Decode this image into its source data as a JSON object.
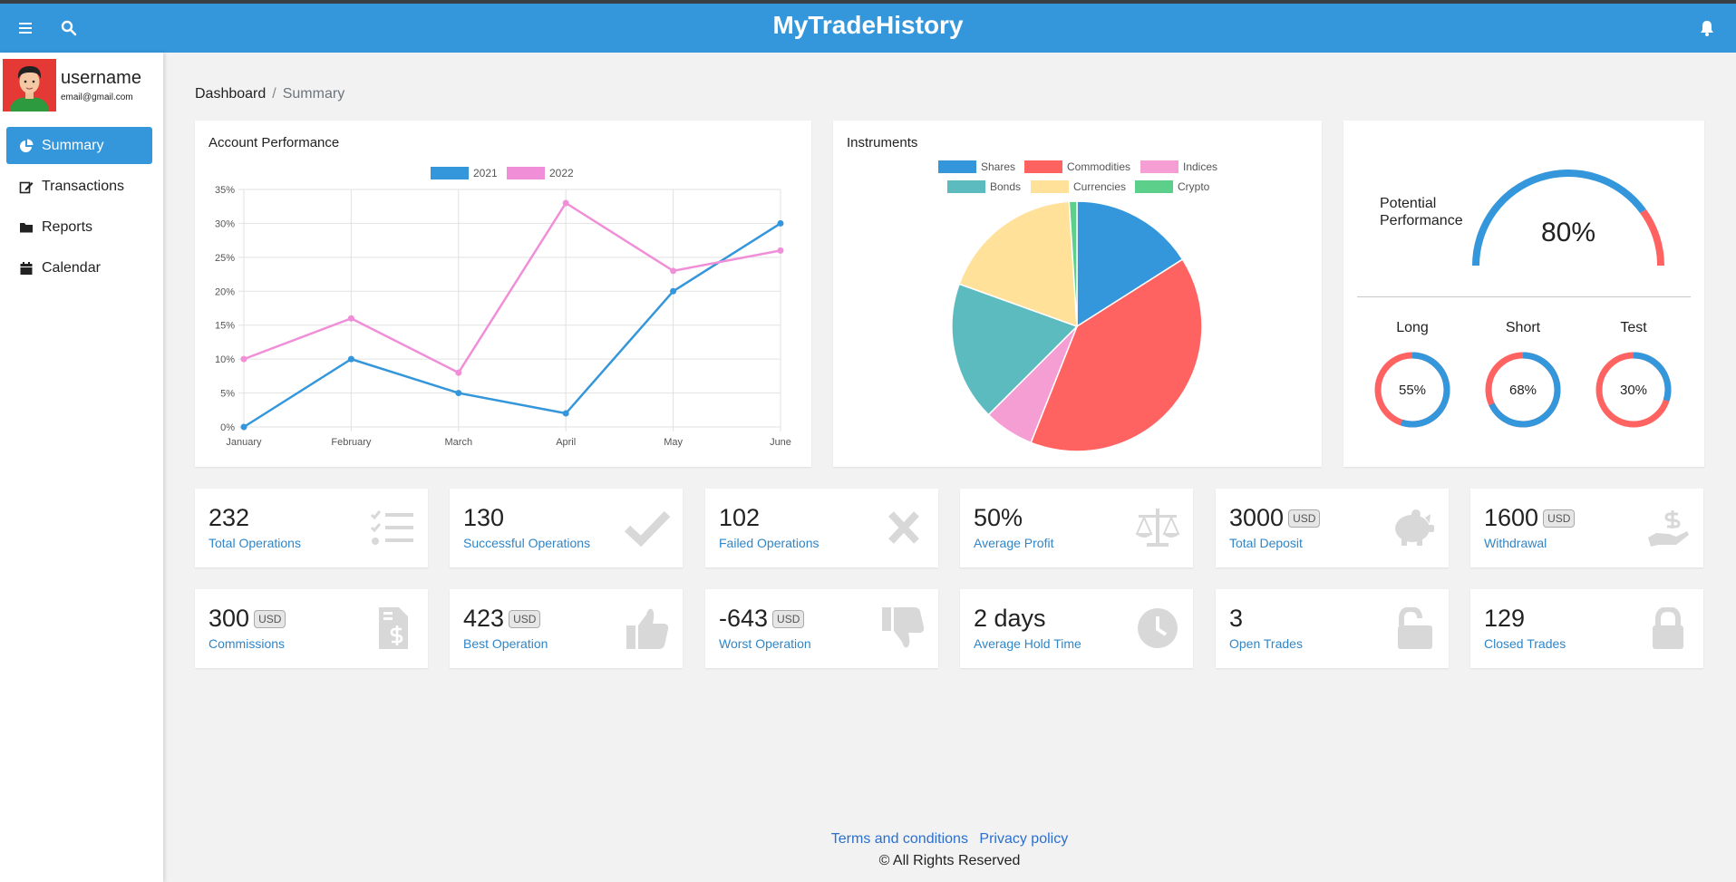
{
  "app": {
    "title": "MyTradeHistory"
  },
  "user": {
    "name": "username",
    "email": "email@gmail.com"
  },
  "nav": {
    "items": [
      {
        "label": "Summary",
        "icon": "pie-chart-icon",
        "active": true
      },
      {
        "label": "Transactions",
        "icon": "edit-icon"
      },
      {
        "label": "Reports",
        "icon": "folder-icon"
      },
      {
        "label": "Calendar",
        "icon": "calendar-icon"
      }
    ]
  },
  "breadcrumb": {
    "root": "Dashboard",
    "separator": "/",
    "current": "Summary"
  },
  "performance": {
    "title": "Account Performance"
  },
  "instruments": {
    "title": "Instruments"
  },
  "potential": {
    "title_line1": "Potential",
    "title_line2": "Performance",
    "value_label": "80%"
  },
  "mini_gauges": [
    {
      "label": "Long",
      "value_label": "55%"
    },
    {
      "label": "Short",
      "value_label": "68%"
    },
    {
      "label": "Test",
      "value_label": "30%"
    }
  ],
  "chart_data": [
    {
      "type": "line",
      "title": "Account Performance",
      "categories": [
        "January",
        "February",
        "March",
        "April",
        "May",
        "June"
      ],
      "series": [
        {
          "name": "2021",
          "color": "#3496db",
          "values": [
            0,
            10,
            5,
            2,
            20,
            30
          ]
        },
        {
          "name": "2022",
          "color": "#f08fd8",
          "values": [
            10,
            16,
            8,
            33,
            23,
            26
          ]
        }
      ],
      "yticks": [
        "0%",
        "5%",
        "10%",
        "15%",
        "20%",
        "25%",
        "30%",
        "35%"
      ],
      "ylim": [
        0,
        35
      ],
      "grid": true,
      "legend": "top-center"
    },
    {
      "type": "pie",
      "title": "Instruments",
      "legend": "top-center",
      "slices": [
        {
          "name": "Shares",
          "value": 16,
          "color": "#3496db"
        },
        {
          "name": "Commodities",
          "value": 40,
          "color": "#ff6361"
        },
        {
          "name": "Indices",
          "value": 6.5,
          "color": "#f59ed4"
        },
        {
          "name": "Bonds",
          "value": 18,
          "color": "#5bbbbf"
        },
        {
          "name": "Currencies",
          "value": 18.5,
          "color": "#ffe19a"
        },
        {
          "name": "Crypto",
          "value": 1,
          "color": "#5ccf8b"
        }
      ]
    },
    {
      "type": "gauge",
      "title": "Potential Performance",
      "value": 80,
      "colors": {
        "fill": "#3496db",
        "rest": "#ff6361"
      }
    },
    {
      "type": "doughnut",
      "items": [
        {
          "label": "Long",
          "value": 55
        },
        {
          "label": "Short",
          "value": 68
        },
        {
          "label": "Test",
          "value": 30
        }
      ],
      "colors": {
        "fill": "#3496db",
        "rest": "#ff6361"
      }
    }
  ],
  "stats": [
    {
      "value": "232",
      "unit": "",
      "label": "Total Operations",
      "icon": "checklist-icon"
    },
    {
      "value": "130",
      "unit": "",
      "label": "Successful Operations",
      "icon": "check-icon"
    },
    {
      "value": "102",
      "unit": "",
      "label": "Failed Operations",
      "icon": "x-icon"
    },
    {
      "value": "50%",
      "unit": "",
      "label": "Average Profit",
      "icon": "balance-scale-icon"
    },
    {
      "value": "3000",
      "unit": "USD",
      "label": "Total Deposit",
      "icon": "piggy-bank-icon"
    },
    {
      "value": "1600",
      "unit": "USD",
      "label": "Withdrawal",
      "icon": "hand-dollar-icon"
    },
    {
      "value": "300",
      "unit": "USD",
      "label": "Commissions",
      "icon": "invoice-dollar-icon"
    },
    {
      "value": "423",
      "unit": "USD",
      "label": "Best Operation",
      "icon": "thumbs-up-icon"
    },
    {
      "value": "-643",
      "unit": "USD",
      "label": "Worst Operation",
      "icon": "thumbs-down-icon"
    },
    {
      "value": "2 days",
      "unit": "",
      "label": "Average Hold Time",
      "icon": "clock-icon"
    },
    {
      "value": "3",
      "unit": "",
      "label": "Open Trades",
      "icon": "unlock-icon"
    },
    {
      "value": "129",
      "unit": "",
      "label": "Closed Trades",
      "icon": "lock-icon"
    }
  ],
  "footer": {
    "terms": "Terms and conditions",
    "privacy": "Privacy policy",
    "rights": "© All Rights Reserved"
  },
  "colors": {
    "accent": "#3496db",
    "link": "#2f86c8",
    "danger": "#ff6361"
  }
}
